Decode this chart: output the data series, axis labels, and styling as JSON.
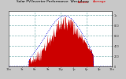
{
  "title": "Solar PV/Inverter Performance  West Array",
  "legend_actual": "Actual",
  "legend_avg": "Average",
  "bg_color": "#c8c8c8",
  "plot_bg_color": "#ffffff",
  "grid_color": "#88bbbb",
  "bar_color": "#cc0000",
  "avg_line_color": "#0000dd",
  "avg_line_color2": "#dd0000",
  "n_points": 288,
  "xlim": [
    0,
    287
  ],
  "ylim": [
    0,
    1.08
  ],
  "title_fontsize": 3.5,
  "tick_fontsize": 2.5
}
